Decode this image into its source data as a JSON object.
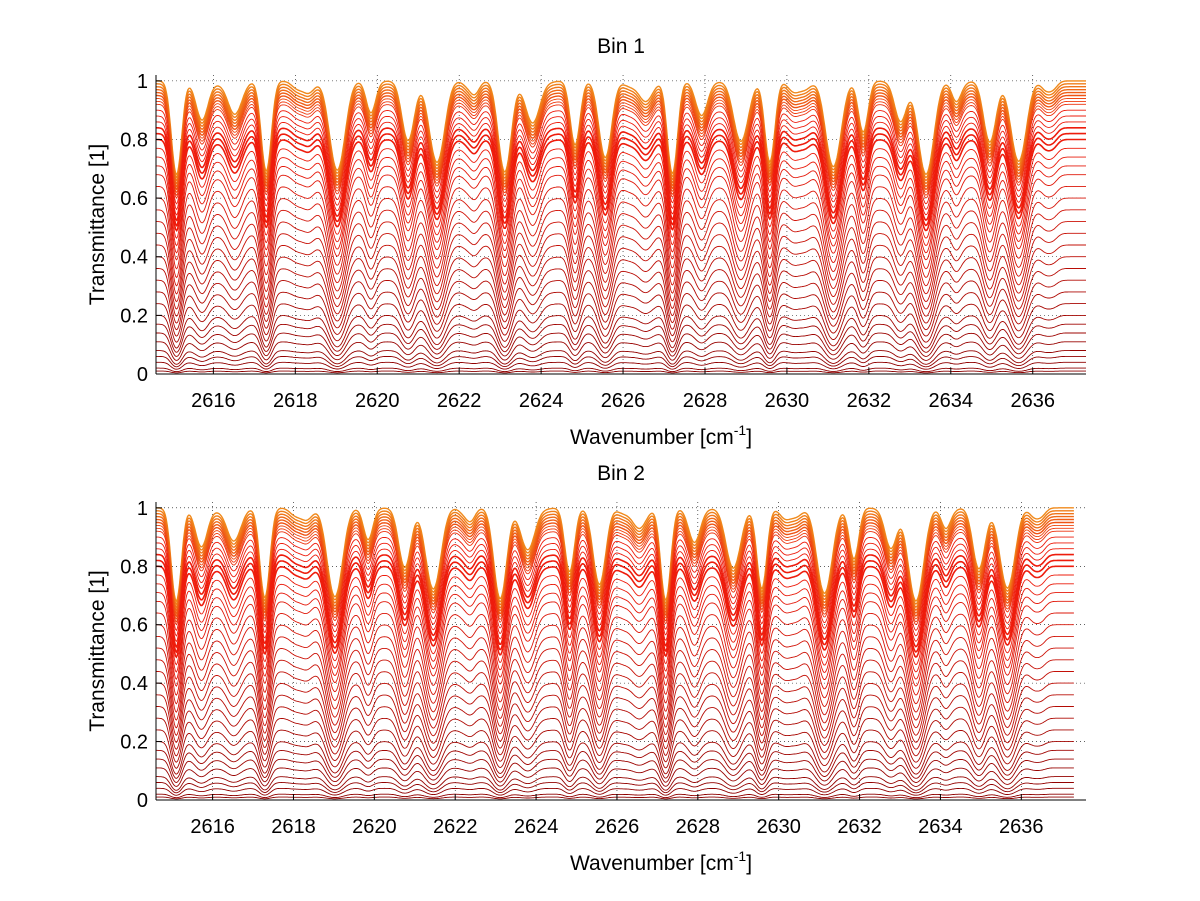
{
  "chart_data": [
    {
      "type": "line",
      "title": "Bin 1",
      "xlabel": "Wavenumber [cm",
      "xlabel_superscript": "-1",
      "xlabel_suffix": "]",
      "ylabel": "Transmittance [1]",
      "xlim": [
        2614.6,
        2637.3
      ],
      "ylim": [
        0,
        1.02
      ],
      "data_xmax": 2637.3,
      "x_ticks": [
        2616,
        2618,
        2620,
        2622,
        2624,
        2626,
        2628,
        2630,
        2632,
        2634,
        2636
      ],
      "x_tick_labels": [
        "2616",
        "2618",
        "2620",
        "2622",
        "2624",
        "2626",
        "2628",
        "2630",
        "2632",
        "2634",
        "2636"
      ],
      "y_ticks": [
        0,
        0.2,
        0.4,
        0.6,
        0.8,
        1
      ],
      "y_tick_labels": [
        "0",
        "0.2",
        "0.4",
        "0.6",
        "0.8",
        "1"
      ],
      "grid": "dotted",
      "legend": "none",
      "absorption_lines": [
        2615.1,
        2615.8,
        2616.4,
        2617.3,
        2618.2,
        2619.0,
        2619.9,
        2620.7,
        2621.5,
        2622.3,
        2623.1,
        2623.9,
        2624.8,
        2625.6,
        2626.4,
        2627.2,
        2628.0,
        2628.8,
        2629.6,
        2630.3,
        2631.1,
        2631.9,
        2632.7,
        2633.4,
        2634.2,
        2634.9,
        2635.7,
        2636.4
      ],
      "series_levels": [
        1.0,
        0.99,
        0.98,
        0.97,
        0.96,
        0.95,
        0.94,
        0.93,
        0.92,
        0.9,
        0.88,
        0.86,
        0.84,
        0.82,
        0.8,
        0.77,
        0.74,
        0.71,
        0.68,
        0.64,
        0.6,
        0.56,
        0.52,
        0.48,
        0.44,
        0.4,
        0.36,
        0.32,
        0.28,
        0.24,
        0.2,
        0.17,
        0.14,
        0.11,
        0.08,
        0.06,
        0.04,
        0.02,
        0.01,
        0.0
      ],
      "colors": {
        "top": "#f08a1c",
        "mid": "#ee1c0c",
        "bottom": "#8b0000"
      }
    },
    {
      "type": "line",
      "title": "Bin 2",
      "xlabel": "Wavenumber [cm",
      "xlabel_superscript": "-1",
      "xlabel_suffix": "]",
      "ylabel": "Transmittance [1]",
      "xlim": [
        2614.6,
        2637.6
      ],
      "ylim": [
        0,
        1.02
      ],
      "data_xmax": 2637.3,
      "x_ticks": [
        2616,
        2618,
        2620,
        2622,
        2624,
        2626,
        2628,
        2630,
        2632,
        2634,
        2636
      ],
      "x_tick_labels": [
        "2616",
        "2618",
        "2620",
        "2622",
        "2624",
        "2626",
        "2628",
        "2630",
        "2632",
        "2634",
        "2636"
      ],
      "y_ticks": [
        0,
        0.2,
        0.4,
        0.6,
        0.8,
        1
      ],
      "y_tick_labels": [
        "0",
        "0.2",
        "0.4",
        "0.6",
        "0.8",
        "1"
      ],
      "grid": "dotted",
      "legend": "none",
      "absorption_lines": [
        2615.1,
        2615.8,
        2616.4,
        2617.3,
        2618.2,
        2619.0,
        2619.9,
        2620.7,
        2621.5,
        2622.3,
        2623.1,
        2623.9,
        2624.8,
        2625.6,
        2626.4,
        2627.2,
        2628.0,
        2628.8,
        2629.6,
        2630.3,
        2631.1,
        2631.9,
        2632.7,
        2633.4,
        2634.2,
        2634.9,
        2635.7,
        2636.4
      ],
      "series_levels": [
        1.0,
        0.99,
        0.98,
        0.97,
        0.96,
        0.95,
        0.94,
        0.93,
        0.92,
        0.9,
        0.88,
        0.86,
        0.84,
        0.82,
        0.8,
        0.77,
        0.74,
        0.71,
        0.68,
        0.64,
        0.6,
        0.56,
        0.52,
        0.48,
        0.44,
        0.4,
        0.36,
        0.32,
        0.28,
        0.24,
        0.2,
        0.17,
        0.14,
        0.11,
        0.08,
        0.06,
        0.04,
        0.02,
        0.01,
        0.0
      ],
      "colors": {
        "top": "#f08a1c",
        "mid": "#ee1c0c",
        "bottom": "#8b0000"
      }
    }
  ]
}
